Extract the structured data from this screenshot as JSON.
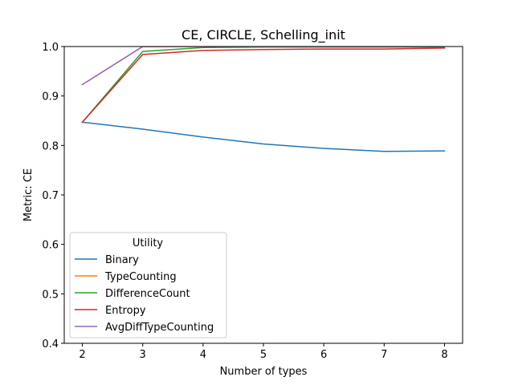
{
  "chart_data": {
    "type": "line",
    "title": "CE, CIRCLE, Schelling_init",
    "xlabel": "Number of types",
    "ylabel": "Metric: CE",
    "x": [
      2,
      3,
      4,
      5,
      6,
      7,
      8
    ],
    "xlim": [
      1.7,
      8.3
    ],
    "ylim": [
      0.4,
      1.0
    ],
    "xticks": [
      "2",
      "3",
      "4",
      "5",
      "6",
      "7",
      "8"
    ],
    "yticks": [
      "0.4",
      "0.5",
      "0.6",
      "0.7",
      "0.8",
      "0.9",
      "1.0"
    ],
    "grid": false,
    "legend": {
      "title": "Utility",
      "placement": "lower-left"
    },
    "series": [
      {
        "name": "Binary",
        "color": "#1f77b4",
        "values": [
          0.847,
          0.833,
          0.817,
          0.803,
          0.794,
          0.788,
          0.789
        ]
      },
      {
        "name": "TypeCounting",
        "color": "#ff7f0e",
        "values": [
          0.923,
          1.0,
          1.0,
          1.0,
          1.0,
          1.0,
          1.0
        ]
      },
      {
        "name": "DifferenceCount",
        "color": "#2ca02c",
        "values": [
          0.847,
          0.99,
          0.998,
          0.999,
          0.999,
          0.999,
          0.999
        ]
      },
      {
        "name": "Entropy",
        "color": "#d62728",
        "values": [
          0.847,
          0.984,
          0.992,
          0.994,
          0.995,
          0.995,
          0.997
        ]
      },
      {
        "name": "AvgDiffTypeCounting",
        "color": "#9467bd",
        "values": [
          0.923,
          1.0,
          1.0,
          1.0,
          1.0,
          1.0,
          1.0
        ]
      }
    ]
  }
}
